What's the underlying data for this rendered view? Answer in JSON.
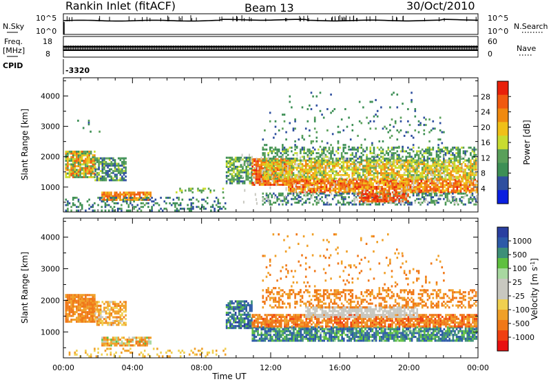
{
  "header": {
    "title": "Rankin Inlet (fitACF)",
    "beam": "Beam 13",
    "date": "30/Oct/2010"
  },
  "panels": {
    "nsky": {
      "label": "N.Sky",
      "right_label": "N.Search",
      "left_ticks": [
        "10^5",
        "10^0"
      ],
      "right_ticks": [
        "10^5",
        "10^0"
      ]
    },
    "freq": {
      "label_line1": "Freq.",
      "label_line2": "[MHz]",
      "right_label": "Nave",
      "left_ticks": [
        "18",
        "8"
      ],
      "right_ticks": [
        "60",
        "0"
      ]
    },
    "cpid": {
      "label": "CPID",
      "value": "-3320"
    }
  },
  "colors": {
    "power": [
      "#0a1fe0",
      "#2f4f9f",
      "#3d8f55",
      "#5aa05a",
      "#c8dc30",
      "#f0c018",
      "#f08a10",
      "#f05a10",
      "#e8200a"
    ],
    "velocity_pos": [
      "#2a3fa0",
      "#2d5aa8",
      "#3d8f78",
      "#5fc040",
      "#a8d8a0"
    ],
    "velocity_neutral": "#c8c8c0",
    "velocity_neg": [
      "#f0d050",
      "#f0a028",
      "#f07818",
      "#f04010",
      "#e81010"
    ]
  },
  "chart_data": [
    {
      "type": "heatmap",
      "name": "power",
      "x_ticks": [
        "00:00",
        "04:00",
        "08:00",
        "12:00",
        "16:00",
        "20:00",
        "00:00"
      ],
      "xlim_hours": [
        0,
        24
      ],
      "ylabel": "Slant Range [km]",
      "y_ticks": [
        1000,
        2000,
        3000,
        4000
      ],
      "ylim": [
        180,
        4600
      ],
      "colorbar": {
        "label": "Power [dB]",
        "ticks": [
          4,
          8,
          12,
          16,
          20,
          24,
          28
        ],
        "range": [
          0,
          32
        ]
      },
      "regions": [
        {
          "t": [
            0.1,
            1.8
          ],
          "r": [
            1300,
            2150
          ],
          "v": [
            8,
            28
          ],
          "d": 0.85
        },
        {
          "t": [
            1.8,
            3.6
          ],
          "r": [
            1200,
            1950
          ],
          "v": [
            4,
            16
          ],
          "d": 0.7
        },
        {
          "t": [
            2.2,
            5.0
          ],
          "r": [
            550,
            800
          ],
          "v": [
            20,
            28
          ],
          "d": 0.85
        },
        {
          "t": [
            0.1,
            9.4
          ],
          "r": [
            200,
            650
          ],
          "v": [
            4,
            12
          ],
          "d": 0.3
        },
        {
          "t": [
            6.5,
            9.2
          ],
          "r": [
            800,
            950
          ],
          "v": [
            10,
            16
          ],
          "d": 0.3
        },
        {
          "t": [
            9.4,
            10.9
          ],
          "r": [
            1100,
            1950
          ],
          "v": [
            6,
            16
          ],
          "d": 0.75
        },
        {
          "t": [
            10.9,
            13.2
          ],
          "r": [
            1050,
            1900
          ],
          "v": [
            20,
            30
          ],
          "d": 0.85
        },
        {
          "t": [
            13.0,
            23.9
          ],
          "r": [
            800,
            1250
          ],
          "v": [
            18,
            30
          ],
          "d": 0.85
        },
        {
          "t": [
            11.5,
            23.9
          ],
          "r": [
            1250,
            1900
          ],
          "v": [
            12,
            24
          ],
          "d": 0.75
        },
        {
          "t": [
            11.5,
            23.9
          ],
          "r": [
            1850,
            2300
          ],
          "v": [
            6,
            16
          ],
          "d": 0.5
        },
        {
          "t": [
            11.5,
            23.9
          ],
          "r": [
            400,
            800
          ],
          "v": [
            4,
            14
          ],
          "d": 0.45
        },
        {
          "t": [
            11.5,
            22.0
          ],
          "r": [
            2300,
            3300
          ],
          "v": [
            4,
            14
          ],
          "d": 0.07
        },
        {
          "t": [
            11.5,
            20.5
          ],
          "r": [
            3300,
            4100
          ],
          "v": [
            6,
            10
          ],
          "d": 0.03
        },
        {
          "t": [
            0.8,
            2.2
          ],
          "r": [
            2800,
            3200
          ],
          "v": [
            4,
            12
          ],
          "d": 0.05
        },
        {
          "t": [
            17.0,
            20.0
          ],
          "r": [
            500,
            750
          ],
          "v": [
            24,
            30
          ],
          "d": 0.8
        }
      ]
    },
    {
      "type": "heatmap",
      "name": "velocity",
      "x_ticks": [
        "00:00",
        "04:00",
        "08:00",
        "12:00",
        "16:00",
        "20:00",
        "00:00"
      ],
      "xlim_hours": [
        0,
        24
      ],
      "xlabel": "Time UT",
      "ylabel": "Slant Range [km]",
      "y_ticks": [
        1000,
        2000,
        3000,
        4000
      ],
      "ylim": [
        180,
        4600
      ],
      "colorbar": {
        "label": "Velocity [m s-1]",
        "ticks": [
          1000,
          500,
          100,
          25,
          -25,
          -100,
          -500,
          -1000
        ]
      },
      "regions": [
        {
          "t": [
            0.1,
            1.8
          ],
          "r": [
            1300,
            2150
          ],
          "v": [
            -500,
            -100
          ],
          "d": 0.85
        },
        {
          "t": [
            1.8,
            3.6
          ],
          "r": [
            1200,
            1950
          ],
          "v": [
            -300,
            25
          ],
          "d": 0.65
        },
        {
          "t": [
            2.2,
            5.0
          ],
          "r": [
            550,
            800
          ],
          "v": [
            -400,
            150
          ],
          "d": 0.8
        },
        {
          "t": [
            0.1,
            9.4
          ],
          "r": [
            200,
            500
          ],
          "v": [
            -150,
            -25
          ],
          "d": 0.2
        },
        {
          "t": [
            9.4,
            10.9
          ],
          "r": [
            1100,
            1950
          ],
          "v": [
            100,
            900
          ],
          "d": 0.75
        },
        {
          "t": [
            10.9,
            23.9
          ],
          "r": [
            700,
            1150
          ],
          "v": [
            50,
            800
          ],
          "d": 0.8
        },
        {
          "t": [
            10.9,
            23.9
          ],
          "r": [
            1150,
            1550
          ],
          "v": [
            -600,
            -100
          ],
          "d": 0.8
        },
        {
          "t": [
            14.0,
            20.5
          ],
          "r": [
            1450,
            1800
          ],
          "v": [
            -20,
            20
          ],
          "d": 0.75
        },
        {
          "t": [
            11.5,
            23.9
          ],
          "r": [
            1750,
            2300
          ],
          "v": [
            -500,
            -100
          ],
          "d": 0.4
        },
        {
          "t": [
            11.5,
            22.0
          ],
          "r": [
            2300,
            3400
          ],
          "v": [
            -500,
            -100
          ],
          "d": 0.06
        },
        {
          "t": [
            12.0,
            20.0
          ],
          "r": [
            3400,
            4100
          ],
          "v": [
            -300,
            -100
          ],
          "d": 0.03
        }
      ]
    }
  ]
}
